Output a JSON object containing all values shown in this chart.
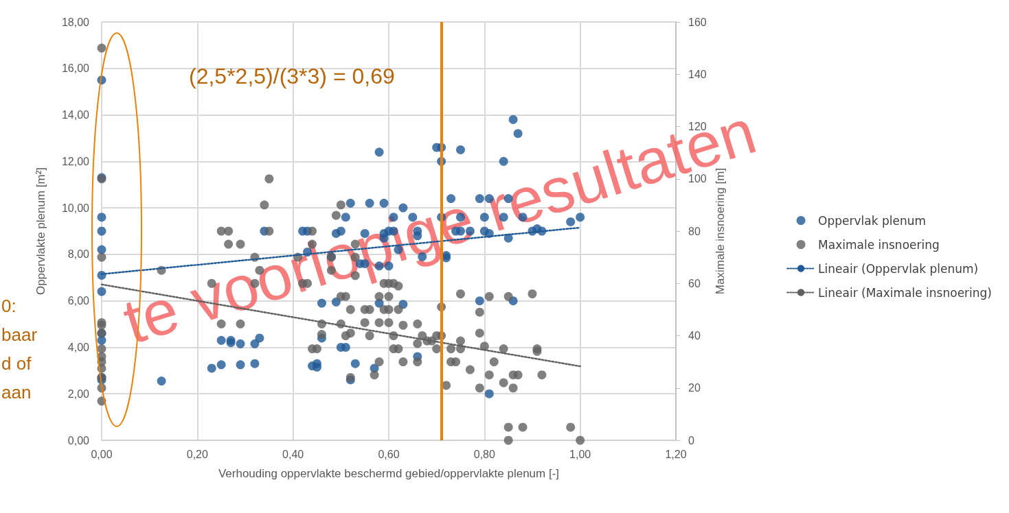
{
  "chart_data": {
    "type": "scatter",
    "xlabel": "Verhouding oppervlakte beschermd gebied/oppervlakte plenum [-]",
    "ylabel": "Oppervlakte plenum [m²]",
    "y2label": "Maximale insnoering [m]",
    "xlim": [
      0,
      1.2
    ],
    "xticks": [
      {
        "value": 0,
        "label": "0,00"
      },
      {
        "value": 0.2,
        "label": "0,20"
      },
      {
        "value": 0.4,
        "label": "0,40"
      },
      {
        "value": 0.6,
        "label": "0,60"
      },
      {
        "value": 0.8,
        "label": "0,80"
      },
      {
        "value": 1,
        "label": "1,00"
      },
      {
        "value": 1.2,
        "label": "1,20"
      }
    ],
    "ylim": [
      0,
      18
    ],
    "yticks": [
      {
        "value": 0,
        "label": "0,00"
      },
      {
        "value": 2,
        "label": "2,00"
      },
      {
        "value": 4,
        "label": "4,00"
      },
      {
        "value": 6,
        "label": "6,00"
      },
      {
        "value": 8,
        "label": "8,00"
      },
      {
        "value": 10,
        "label": "10,00"
      },
      {
        "value": 12,
        "label": "12,00"
      },
      {
        "value": 14,
        "label": "14,00"
      },
      {
        "value": 16,
        "label": "16,00"
      },
      {
        "value": 18,
        "label": "18,00"
      }
    ],
    "y2lim": [
      0,
      160
    ],
    "y2ticks": [
      0,
      20,
      40,
      60,
      80,
      100,
      120,
      140,
      160
    ],
    "grid": true,
    "legend": "right",
    "marker": "circle",
    "series": [
      {
        "name": "Oppervlak plenum",
        "color": "#1f5a96",
        "x": [
          0,
          0,
          0,
          0,
          0,
          0,
          0,
          0,
          0,
          0,
          0,
          0.125,
          0.23,
          0.25,
          0.25,
          0.27,
          0.27,
          0.29,
          0.29,
          0.32,
          0.32,
          0.33,
          0.34,
          0.42,
          0.43,
          0.43,
          0.44,
          0.45,
          0.45,
          0.46,
          0.46,
          0.48,
          0.49,
          0.49,
          0.5,
          0.5,
          0.51,
          0.51,
          0.52,
          0.52,
          0.53,
          0.54,
          0.55,
          0.55,
          0.56,
          0.57,
          0.58,
          0.58,
          0.58,
          0.59,
          0.59,
          0.59,
          0.6,
          0.6,
          0.61,
          0.61,
          0.62,
          0.63,
          0.63,
          0.65,
          0.66,
          0.66,
          0.66,
          0.67,
          0.7,
          0.71,
          0.71,
          0.71,
          0.72,
          0.72,
          0.73,
          0.74,
          0.75,
          0.75,
          0.75,
          0.77,
          0.79,
          0.79,
          0.8,
          0.8,
          0.81,
          0.81,
          0.81,
          0.84,
          0.84,
          0.85,
          0.85,
          0.86,
          0.86,
          0.87,
          0.88,
          0.9,
          0.91,
          0.92,
          0.98,
          1
        ],
        "values": [
          15.5,
          11.3,
          9.6,
          9,
          8.2,
          7.1,
          6.4,
          4.6,
          4.3,
          2.7,
          2.6,
          2.55,
          3.1,
          4.3,
          3.25,
          4.2,
          4.3,
          3.25,
          4.15,
          4.15,
          3.3,
          4.4,
          9,
          9,
          9,
          8.1,
          3.2,
          3.3,
          3.15,
          5.9,
          4.4,
          7.9,
          8.9,
          5.95,
          9,
          4,
          4,
          9.6,
          10.2,
          2.6,
          3.3,
          7.6,
          8.9,
          7.6,
          10.2,
          3.1,
          12.4,
          7.5,
          5.9,
          10.2,
          8.9,
          8.7,
          7.5,
          9,
          9,
          9.6,
          8.2,
          10,
          5.85,
          9.6,
          9,
          3.6,
          8.8,
          7.9,
          12.6,
          12,
          12.6,
          9.6,
          7.85,
          7.95,
          10.4,
          9,
          12.5,
          9.6,
          9,
          9,
          10.4,
          6,
          9.6,
          9,
          10.4,
          2,
          8.9,
          12,
          9.6,
          10.4,
          8.7,
          13.8,
          6,
          13.2,
          9.6,
          9,
          9.1,
          9,
          9.4,
          9.6
        ]
      },
      {
        "name": "Maximale insnoering",
        "color": "#606060",
        "axis": "y2",
        "x": [
          0,
          0,
          0,
          0,
          0,
          0,
          0,
          0,
          0,
          0,
          0,
          0,
          0,
          0.125,
          0.23,
          0.25,
          0.265,
          0.265,
          0.29,
          0.25,
          0.29,
          0.32,
          0.32,
          0.33,
          0.34,
          0.35,
          0.35,
          0.41,
          0.42,
          0.43,
          0.44,
          0.44,
          0.44,
          0.45,
          0.46,
          0.46,
          0.48,
          0.48,
          0.49,
          0.5,
          0.5,
          0.5,
          0.51,
          0.51,
          0.52,
          0.52,
          0.52,
          0.53,
          0.53,
          0.53,
          0.55,
          0.55,
          0.56,
          0.56,
          0.57,
          0.58,
          0.58,
          0.58,
          0.59,
          0.59,
          0.6,
          0.6,
          0.6,
          0.6,
          0.61,
          0.61,
          0.61,
          0.62,
          0.62,
          0.62,
          0.63,
          0.63,
          0.66,
          0.66,
          0.66,
          0.67,
          0.68,
          0.69,
          0.7,
          0.7,
          0.71,
          0.71,
          0.72,
          0.73,
          0.73,
          0.74,
          0.75,
          0.75,
          0.75,
          0.77,
          0.79,
          0.79,
          0.79,
          0.8,
          0.81,
          0.81,
          0.82,
          0.84,
          0.84,
          0.85,
          0.85,
          0.85,
          0.86,
          0.86,
          0.87,
          0.88,
          0.9,
          0.91,
          0.91,
          0.92,
          0.98,
          1
        ],
        "values": [
          150,
          100,
          70,
          45,
          44,
          41,
          35,
          32,
          30,
          27.5,
          24,
          20,
          15,
          65,
          60,
          80,
          80,
          75,
          75,
          44.5,
          44.5,
          70,
          60,
          65,
          90,
          100,
          80,
          70,
          60,
          60,
          80,
          75,
          35,
          35,
          44.5,
          40.5,
          70,
          65,
          86,
          90,
          55,
          44.5,
          40,
          55,
          50,
          41,
          24,
          63,
          70,
          75,
          50,
          45,
          40,
          50,
          25,
          30,
          55,
          45,
          60,
          50,
          60,
          55,
          50,
          45,
          40,
          60,
          35,
          59,
          50,
          35,
          44,
          30,
          30,
          37,
          44.5,
          40,
          38,
          38,
          40,
          35,
          51,
          40,
          21,
          35,
          30,
          30,
          56,
          38,
          35,
          27,
          20,
          49,
          41,
          36,
          25,
          55,
          30,
          35,
          22,
          55,
          5,
          0,
          20,
          25,
          25,
          5,
          56,
          34,
          35,
          25,
          5,
          0
        ]
      },
      {
        "name": "Lineair (Oppervlak plenum)",
        "type": "line",
        "color": "#1f5a96",
        "line_style": "dotted",
        "marker": "none",
        "x": [
          0,
          1
        ],
        "values": [
          7.15,
          9.15
        ]
      },
      {
        "name": "Lineair (Maximale insnoering)",
        "type": "line",
        "color": "#606060",
        "axis": "y2",
        "line_style": "dotted",
        "marker": "none",
        "x": [
          0,
          1
        ],
        "values": [
          59.6,
          28.3
        ]
      }
    ],
    "ref_lines": [
      {
        "axis": "x",
        "value": 0.71,
        "color": "#f08000"
      }
    ],
    "annotations": [
      "(2,5*2,5)/(3*3) = 0,69",
      "te voorlopige resultaten",
      "0:\nbaar\nd of\naan"
    ]
  }
}
